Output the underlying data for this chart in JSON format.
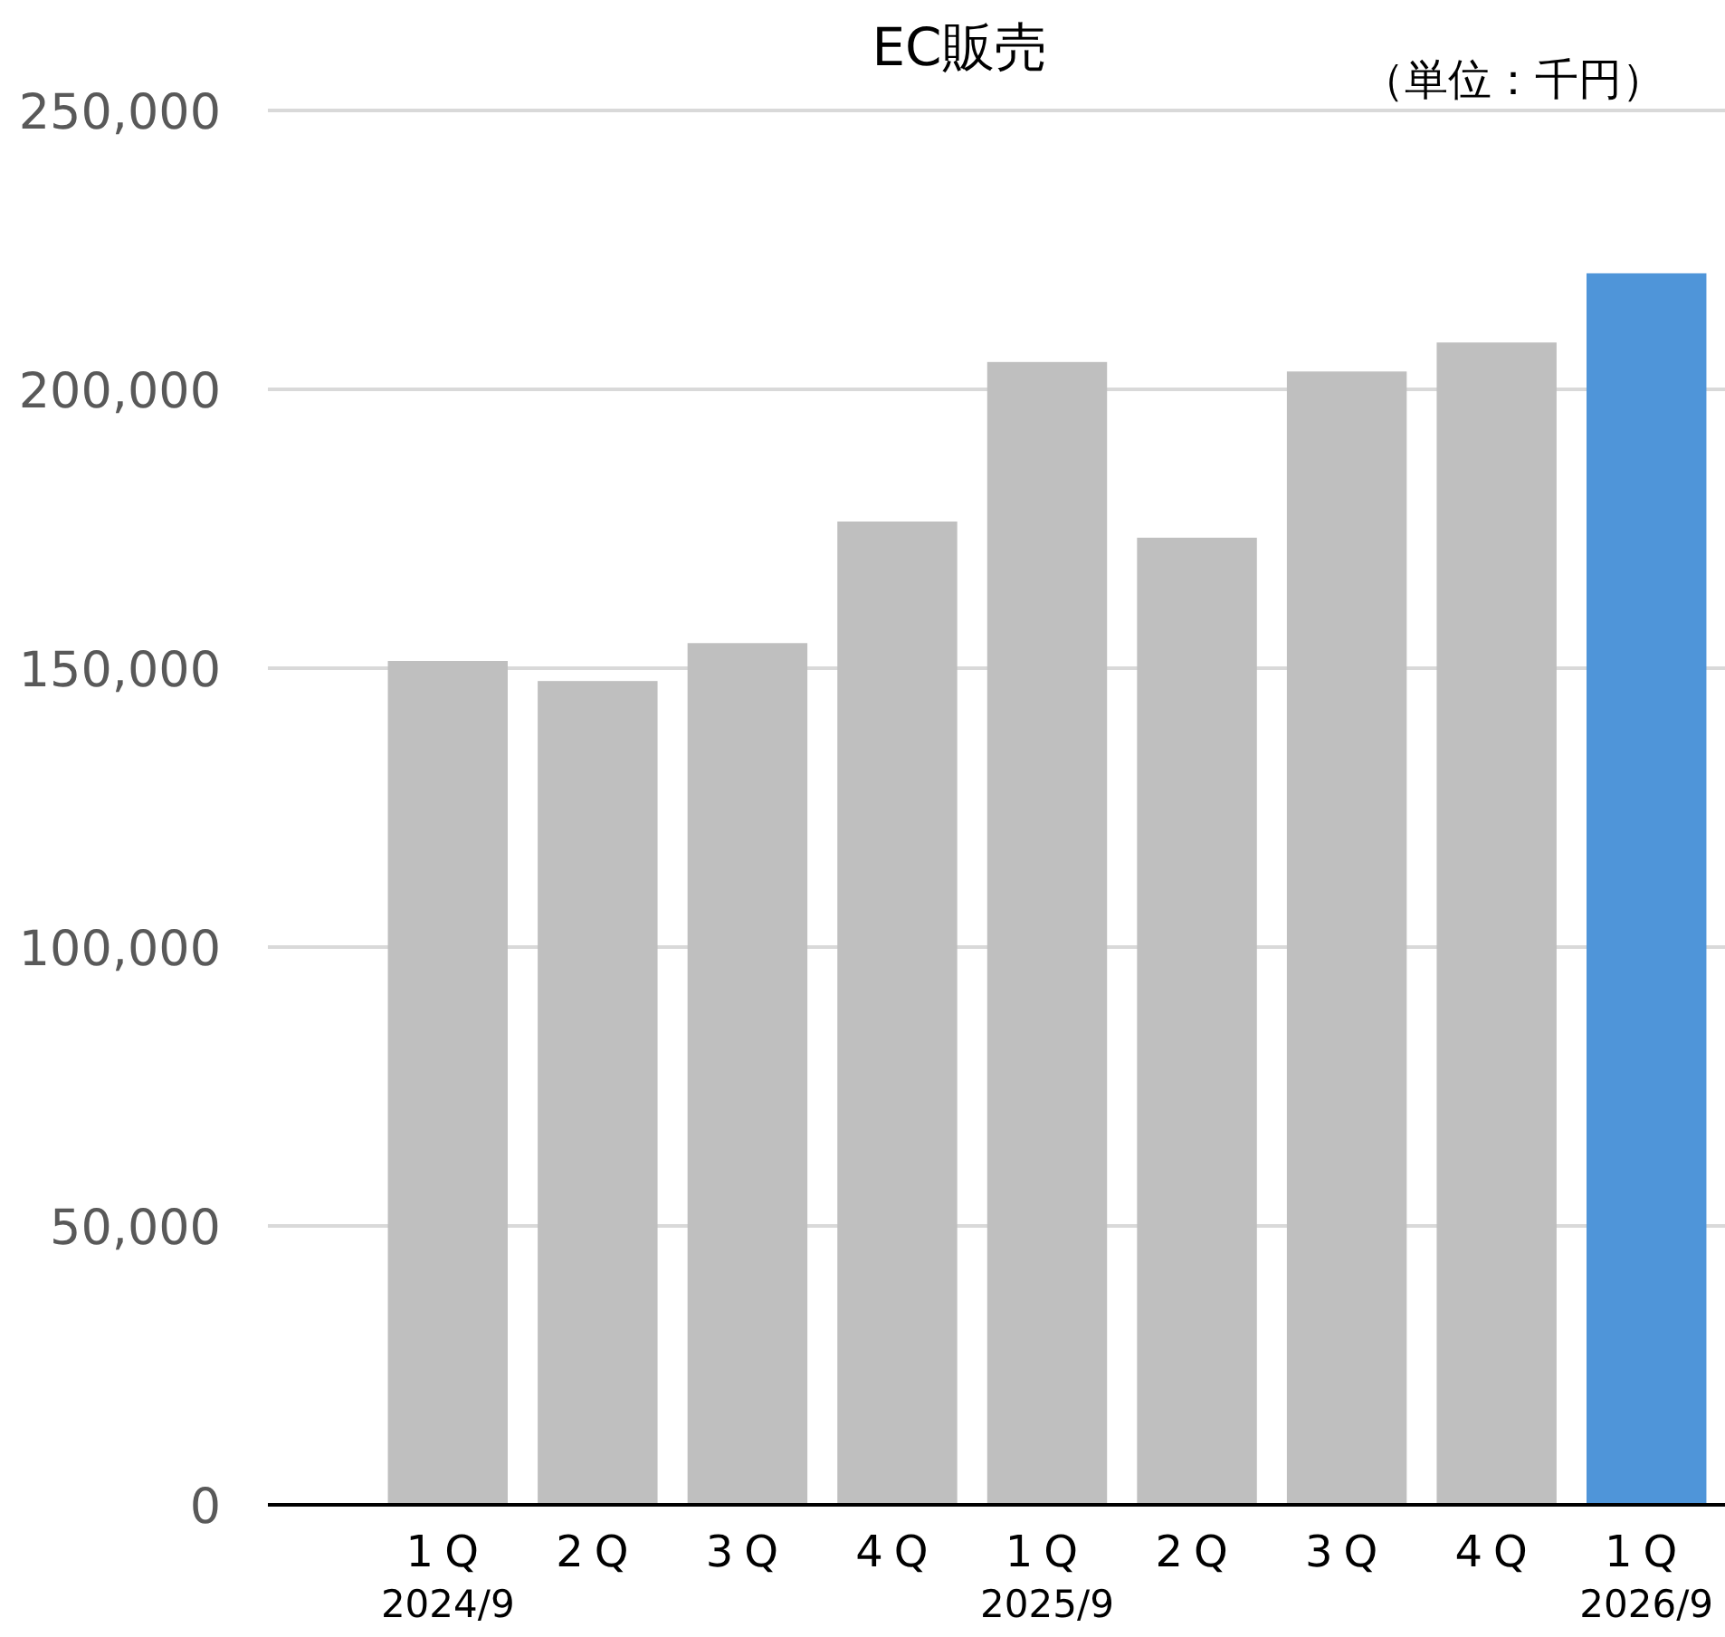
{
  "chart_data": {
    "type": "bar",
    "title": "EC販売",
    "annotations": [
      "（単位：千円）"
    ],
    "categories": [
      "1Q 2024/9",
      "2Q",
      "3Q",
      "4Q",
      "1Q 2025/9",
      "2Q",
      "3Q",
      "4Q",
      "1Q 2026/9"
    ],
    "values": [
      151300,
      147700,
      154500,
      176300,
      204900,
      173400,
      203200,
      208400,
      220800
    ],
    "colors": [
      "#bfbfbf",
      "#bfbfbf",
      "#bfbfbf",
      "#bfbfbf",
      "#bfbfbf",
      "#bfbfbf",
      "#bfbfbf",
      "#bfbfbf",
      "#4f95d9"
    ],
    "ylim": [
      0,
      250000
    ],
    "yticks": [
      {
        "value": 0,
        "label": "0"
      },
      {
        "value": 50000,
        "label": "50,000"
      },
      {
        "value": 100000,
        "label": "100,000"
      },
      {
        "value": 150000,
        "label": "150,000"
      },
      {
        "value": 200000,
        "label": "200,000"
      },
      {
        "value": 250000,
        "label": "250,000"
      }
    ],
    "grid": "y"
  }
}
